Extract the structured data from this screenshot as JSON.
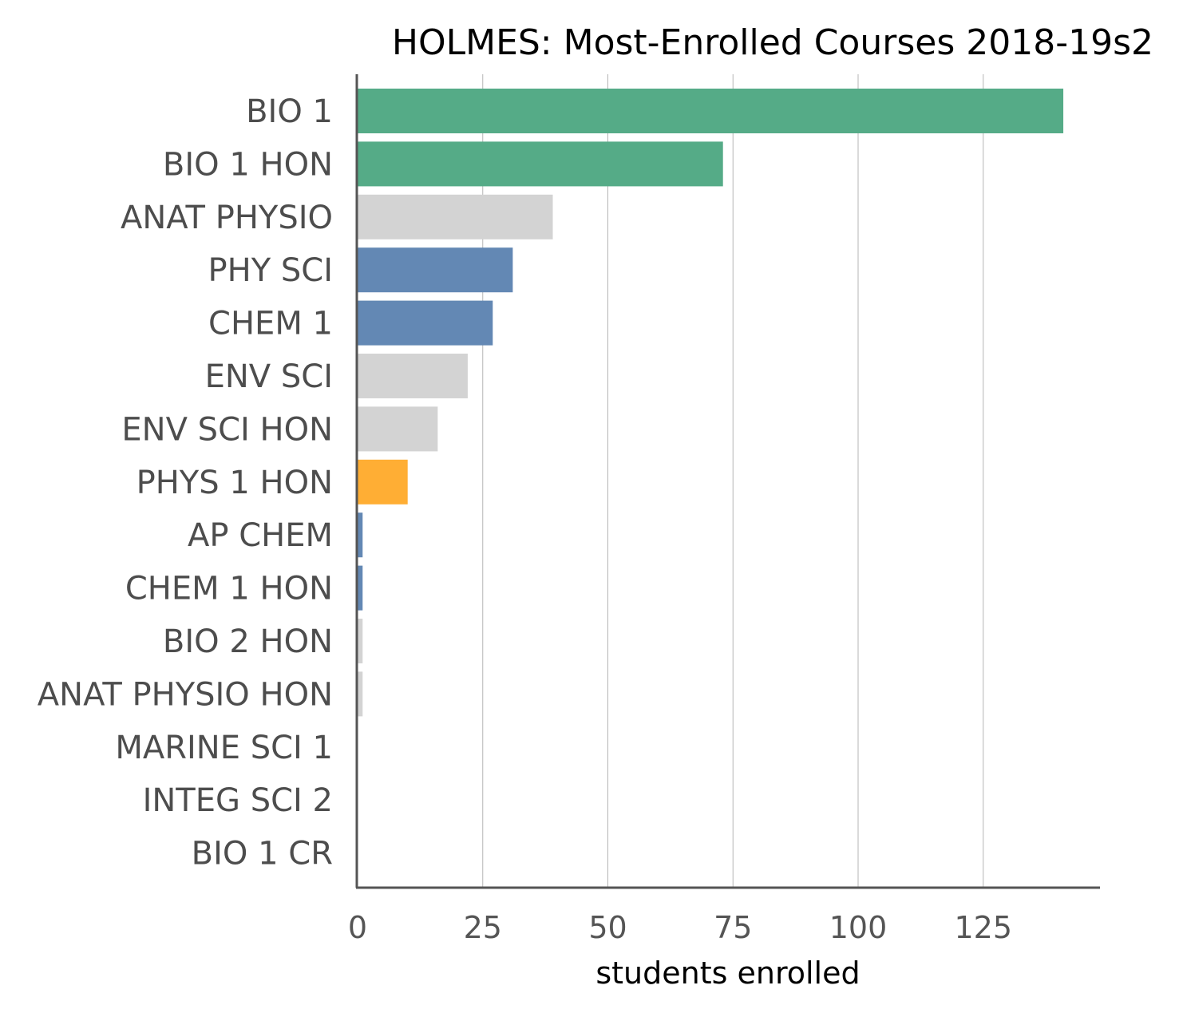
{
  "chart_data": {
    "type": "bar",
    "orientation": "horizontal",
    "title": "HOLMES: Most-Enrolled Courses 2018-19s2",
    "xlabel": "students enrolled",
    "ylabel": "",
    "xlim": [
      0,
      148
    ],
    "xticks": [
      0,
      25,
      50,
      75,
      100,
      125
    ],
    "xtick_labels": [
      "0",
      "25",
      "50",
      "75",
      "100",
      "125"
    ],
    "grid": "vertical gridlines",
    "categories": [
      "BIO 1",
      "BIO 1 HON",
      "ANAT PHYSIO",
      "PHY SCI",
      "CHEM 1",
      "ENV SCI",
      "ENV SCI HON",
      "PHYS 1 HON",
      "AP CHEM",
      "CHEM 1 HON",
      "BIO 2 HON",
      "ANAT PHYSIO HON",
      "MARINE SCI 1",
      "INTEG SCI 2",
      "BIO 1 CR"
    ],
    "values": [
      141,
      73,
      39,
      31,
      27,
      22,
      16,
      10,
      1,
      1,
      1,
      1,
      0,
      0,
      0
    ],
    "bar_colors": [
      "#55ab87",
      "#55ab87",
      "#d3d3d3",
      "#6388b4",
      "#6388b4",
      "#d3d3d3",
      "#d3d3d3",
      "#ffae34",
      "#6388b4",
      "#6388b4",
      "#d3d3d3",
      "#d3d3d3",
      "#d3d3d3",
      "#d3d3d3",
      "#55ab87"
    ]
  }
}
